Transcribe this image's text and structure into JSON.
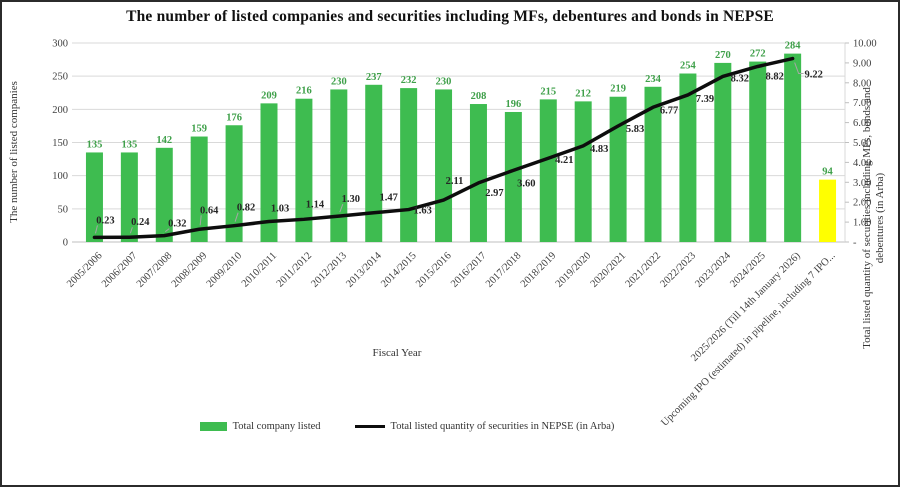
{
  "title": "The number of listed companies and securities including MFs, debentures and bonds in NEPSE",
  "chart_data": {
    "type": "combo",
    "categories": [
      "2005/2006",
      "2006/2007",
      "2007/2008",
      "2008/2009",
      "2009/2010",
      "2010/2011",
      "2011/2012",
      "2012/2013",
      "2013/2014",
      "2014/2015",
      "2015/2016",
      "2016/2017",
      "2017/2018",
      "2018/2019",
      "2019/2020",
      "2020/2021",
      "2021/2022",
      "2022/2023",
      "2023/2024",
      "2024/2025",
      "2025/2026 (Till 14th January 2026)",
      "Upcoming IPO (estimated) in pipeline, including 7 IPO..."
    ],
    "series": [
      {
        "name": "Total company listed",
        "type": "bar",
        "axis": "left",
        "values": [
          135,
          135,
          142,
          159,
          176,
          209,
          216,
          230,
          237,
          232,
          230,
          208,
          196,
          215,
          212,
          219,
          234,
          254,
          270,
          272,
          284,
          94
        ],
        "color": "#3ebc50",
        "highlight_index": 21,
        "highlight_color": "#ffff00",
        "label_color": "#3fa04a"
      },
      {
        "name": "Total listed quantity of securities in NEPSE (in Arba)",
        "type": "line",
        "axis": "right",
        "values": [
          0.23,
          0.24,
          0.32,
          0.64,
          0.82,
          1.03,
          1.14,
          1.3,
          1.47,
          1.63,
          2.11,
          2.97,
          3.6,
          4.21,
          4.83,
          5.83,
          6.77,
          7.39,
          8.32,
          8.82,
          9.22
        ],
        "color": "#0d0d0d",
        "label_color": "#262626"
      }
    ],
    "x_axis": {
      "title": "Fiscal Year"
    },
    "left_axis": {
      "title": "The number of listed companies",
      "min": 0,
      "max": 300,
      "step": 50,
      "ticks": [
        "300",
        "250",
        "200",
        "150",
        "100",
        "50",
        "0"
      ]
    },
    "right_axis": {
      "title": "Total listed quantity of securities including MFs, bonds and\ndebentures (in Arba)",
      "min": 0,
      "max": 10,
      "step": 1,
      "ticks": [
        "10.00",
        "9.00",
        "8.00",
        "7.00",
        "6.00",
        "5.00",
        "4.00",
        "3.00",
        "2.00",
        "1.00",
        "-"
      ]
    },
    "legend": {
      "position": "bottom",
      "items": [
        {
          "label": "Total company listed",
          "type": "bar",
          "color": "#3ebc50"
        },
        {
          "label": "Total listed quantity of securities in NEPSE (in Arba)",
          "type": "line",
          "color": "#0d0d0d"
        }
      ]
    },
    "grid": true,
    "grid_color": "#d9d9d9"
  }
}
